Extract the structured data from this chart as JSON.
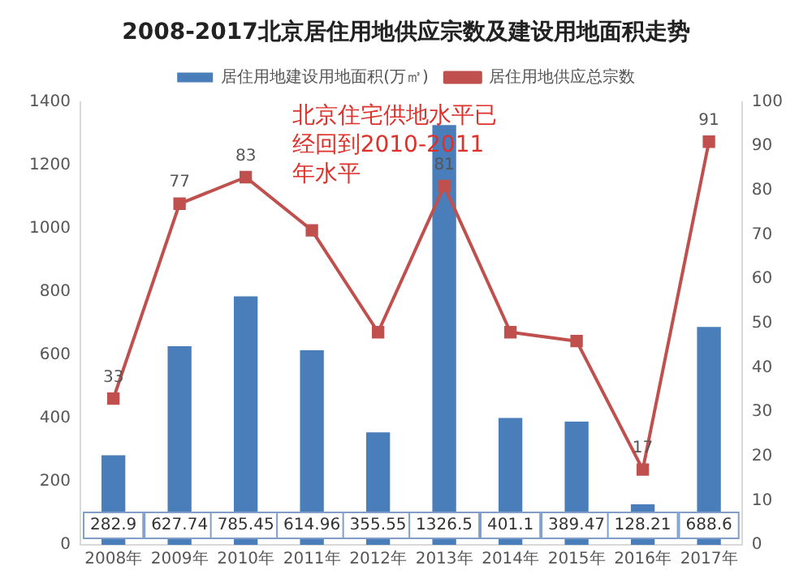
{
  "chart_data": {
    "type": "bar",
    "title": "2008-2017北京居住用地供应宗数及建设用地面积走势",
    "categories": [
      "2008年",
      "2009年",
      "2010年",
      "2011年",
      "2012年",
      "2013年",
      "2014年",
      "2015年",
      "2016年",
      "2017年"
    ],
    "series": [
      {
        "name": "居住用地建设用地面积(万㎡)",
        "color": "#4a7ebb",
        "values": [
          282.9,
          627.74,
          785.45,
          614.96,
          355.55,
          1326.5,
          401.1,
          389.47,
          128.21,
          688.6
        ],
        "value_labels": [
          "282.9",
          "627.74",
          "785.45",
          "614.96",
          "355.55",
          "1326.5",
          "401.1",
          "389.47",
          "128.21",
          "688.6"
        ]
      },
      {
        "name": "居住用地供应总宗数",
        "type": "line",
        "axis": "y2",
        "color": "#c0504d",
        "values": [
          33,
          77,
          83,
          71,
          48,
          81,
          48,
          46,
          17,
          91
        ],
        "value_labels": [
          "33",
          "77",
          "83",
          null,
          null,
          "81",
          null,
          null,
          "17",
          "91"
        ]
      }
    ],
    "ylim": [
      0,
      1400
    ],
    "yticks": [
      0,
      200,
      400,
      600,
      800,
      1000,
      1200,
      1400
    ],
    "y2lim": [
      0,
      100
    ],
    "y2ticks": [
      0,
      10,
      20,
      30,
      40,
      50,
      60,
      70,
      80,
      90,
      100
    ],
    "legend": "top",
    "marker": "square",
    "line_style": "solid",
    "annotations": [
      "北京住宅供地水平已经回到2010-2011年水平"
    ]
  }
}
